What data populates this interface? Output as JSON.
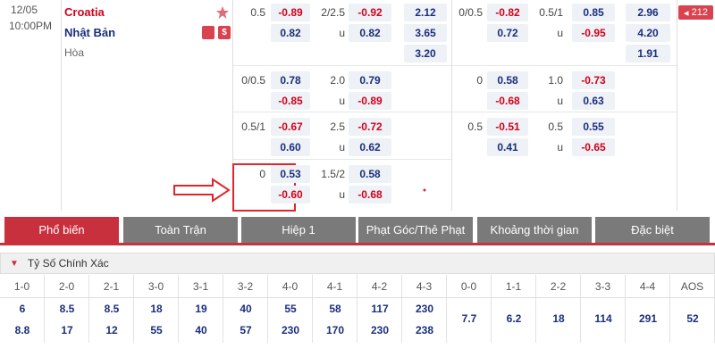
{
  "match": {
    "date": "12/05",
    "time": "10:00PM",
    "home": "Croatia",
    "away": "Nhật Bản",
    "draw": "Hòa",
    "more": "212"
  },
  "full_time": {
    "handicap": [
      {
        "line": "0.5",
        "home": "-0.89",
        "away": "0.82"
      },
      {
        "line": "0/0.5",
        "home": "0.78",
        "away": "-0.85"
      },
      {
        "line": "0.5/1",
        "home": "-0.67",
        "away": "0.60"
      },
      {
        "line": "0",
        "home": "0.53",
        "away": "-0.60"
      }
    ],
    "over_under": [
      {
        "line": "2/2.5",
        "over": "-0.92",
        "under_label": "u",
        "under": "0.82"
      },
      {
        "line": "2.0",
        "over": "0.79",
        "under_label": "u",
        "under": "-0.89"
      },
      {
        "line": "2.5",
        "over": "-0.72",
        "under_label": "u",
        "under": "0.62"
      },
      {
        "line": "1.5/2",
        "over": "0.58",
        "under_label": "u",
        "under": "-0.68"
      }
    ],
    "one_x_two": [
      "2.12",
      "3.65",
      "3.20"
    ]
  },
  "half_time": {
    "handicap": [
      {
        "line": "0/0.5",
        "home": "-0.82",
        "away": "0.72"
      },
      {
        "line": "0",
        "home": "0.58",
        "away": "-0.68"
      },
      {
        "line": "0.5",
        "home": "-0.51",
        "away": "0.41"
      }
    ],
    "over_under": [
      {
        "line": "0.5/1",
        "over": "0.85",
        "under_label": "u",
        "under": "-0.95"
      },
      {
        "line": "1.0",
        "over": "-0.73",
        "under_label": "u",
        "under": "0.63"
      },
      {
        "line": "0.5",
        "over": "0.55",
        "under_label": "u",
        "under": "-0.65"
      }
    ],
    "one_x_two": [
      "2.96",
      "4.20",
      "1.91"
    ]
  },
  "tabs": [
    "Phổ biến",
    "Toàn Trận",
    "Hiệp 1",
    "Phạt Góc/Thẻ Phạt",
    "Khoảng thời gian",
    "Đặc biệt"
  ],
  "section": {
    "title": "Tỷ Số Chính Xác"
  },
  "correct_score": [
    {
      "score": "1-0",
      "odds": [
        "6",
        "8.8"
      ]
    },
    {
      "score": "2-0",
      "odds": [
        "8.5",
        "17"
      ]
    },
    {
      "score": "2-1",
      "odds": [
        "8.5",
        "12"
      ]
    },
    {
      "score": "3-0",
      "odds": [
        "18",
        "55"
      ]
    },
    {
      "score": "3-1",
      "odds": [
        "19",
        "40"
      ]
    },
    {
      "score": "3-2",
      "odds": [
        "40",
        "57"
      ]
    },
    {
      "score": "4-0",
      "odds": [
        "55",
        "230"
      ]
    },
    {
      "score": "4-1",
      "odds": [
        "58",
        "170"
      ]
    },
    {
      "score": "4-2",
      "odds": [
        "117",
        "230"
      ]
    },
    {
      "score": "4-3",
      "odds": [
        "230",
        "238"
      ]
    },
    {
      "score": "0-0",
      "odds": [
        "7.7"
      ]
    },
    {
      "score": "1-1",
      "odds": [
        "6.2"
      ]
    },
    {
      "score": "2-2",
      "odds": [
        "18"
      ]
    },
    {
      "score": "3-3",
      "odds": [
        "114"
      ]
    },
    {
      "score": "4-4",
      "odds": [
        "291"
      ]
    },
    {
      "score": "AOS",
      "odds": [
        "52"
      ]
    }
  ]
}
